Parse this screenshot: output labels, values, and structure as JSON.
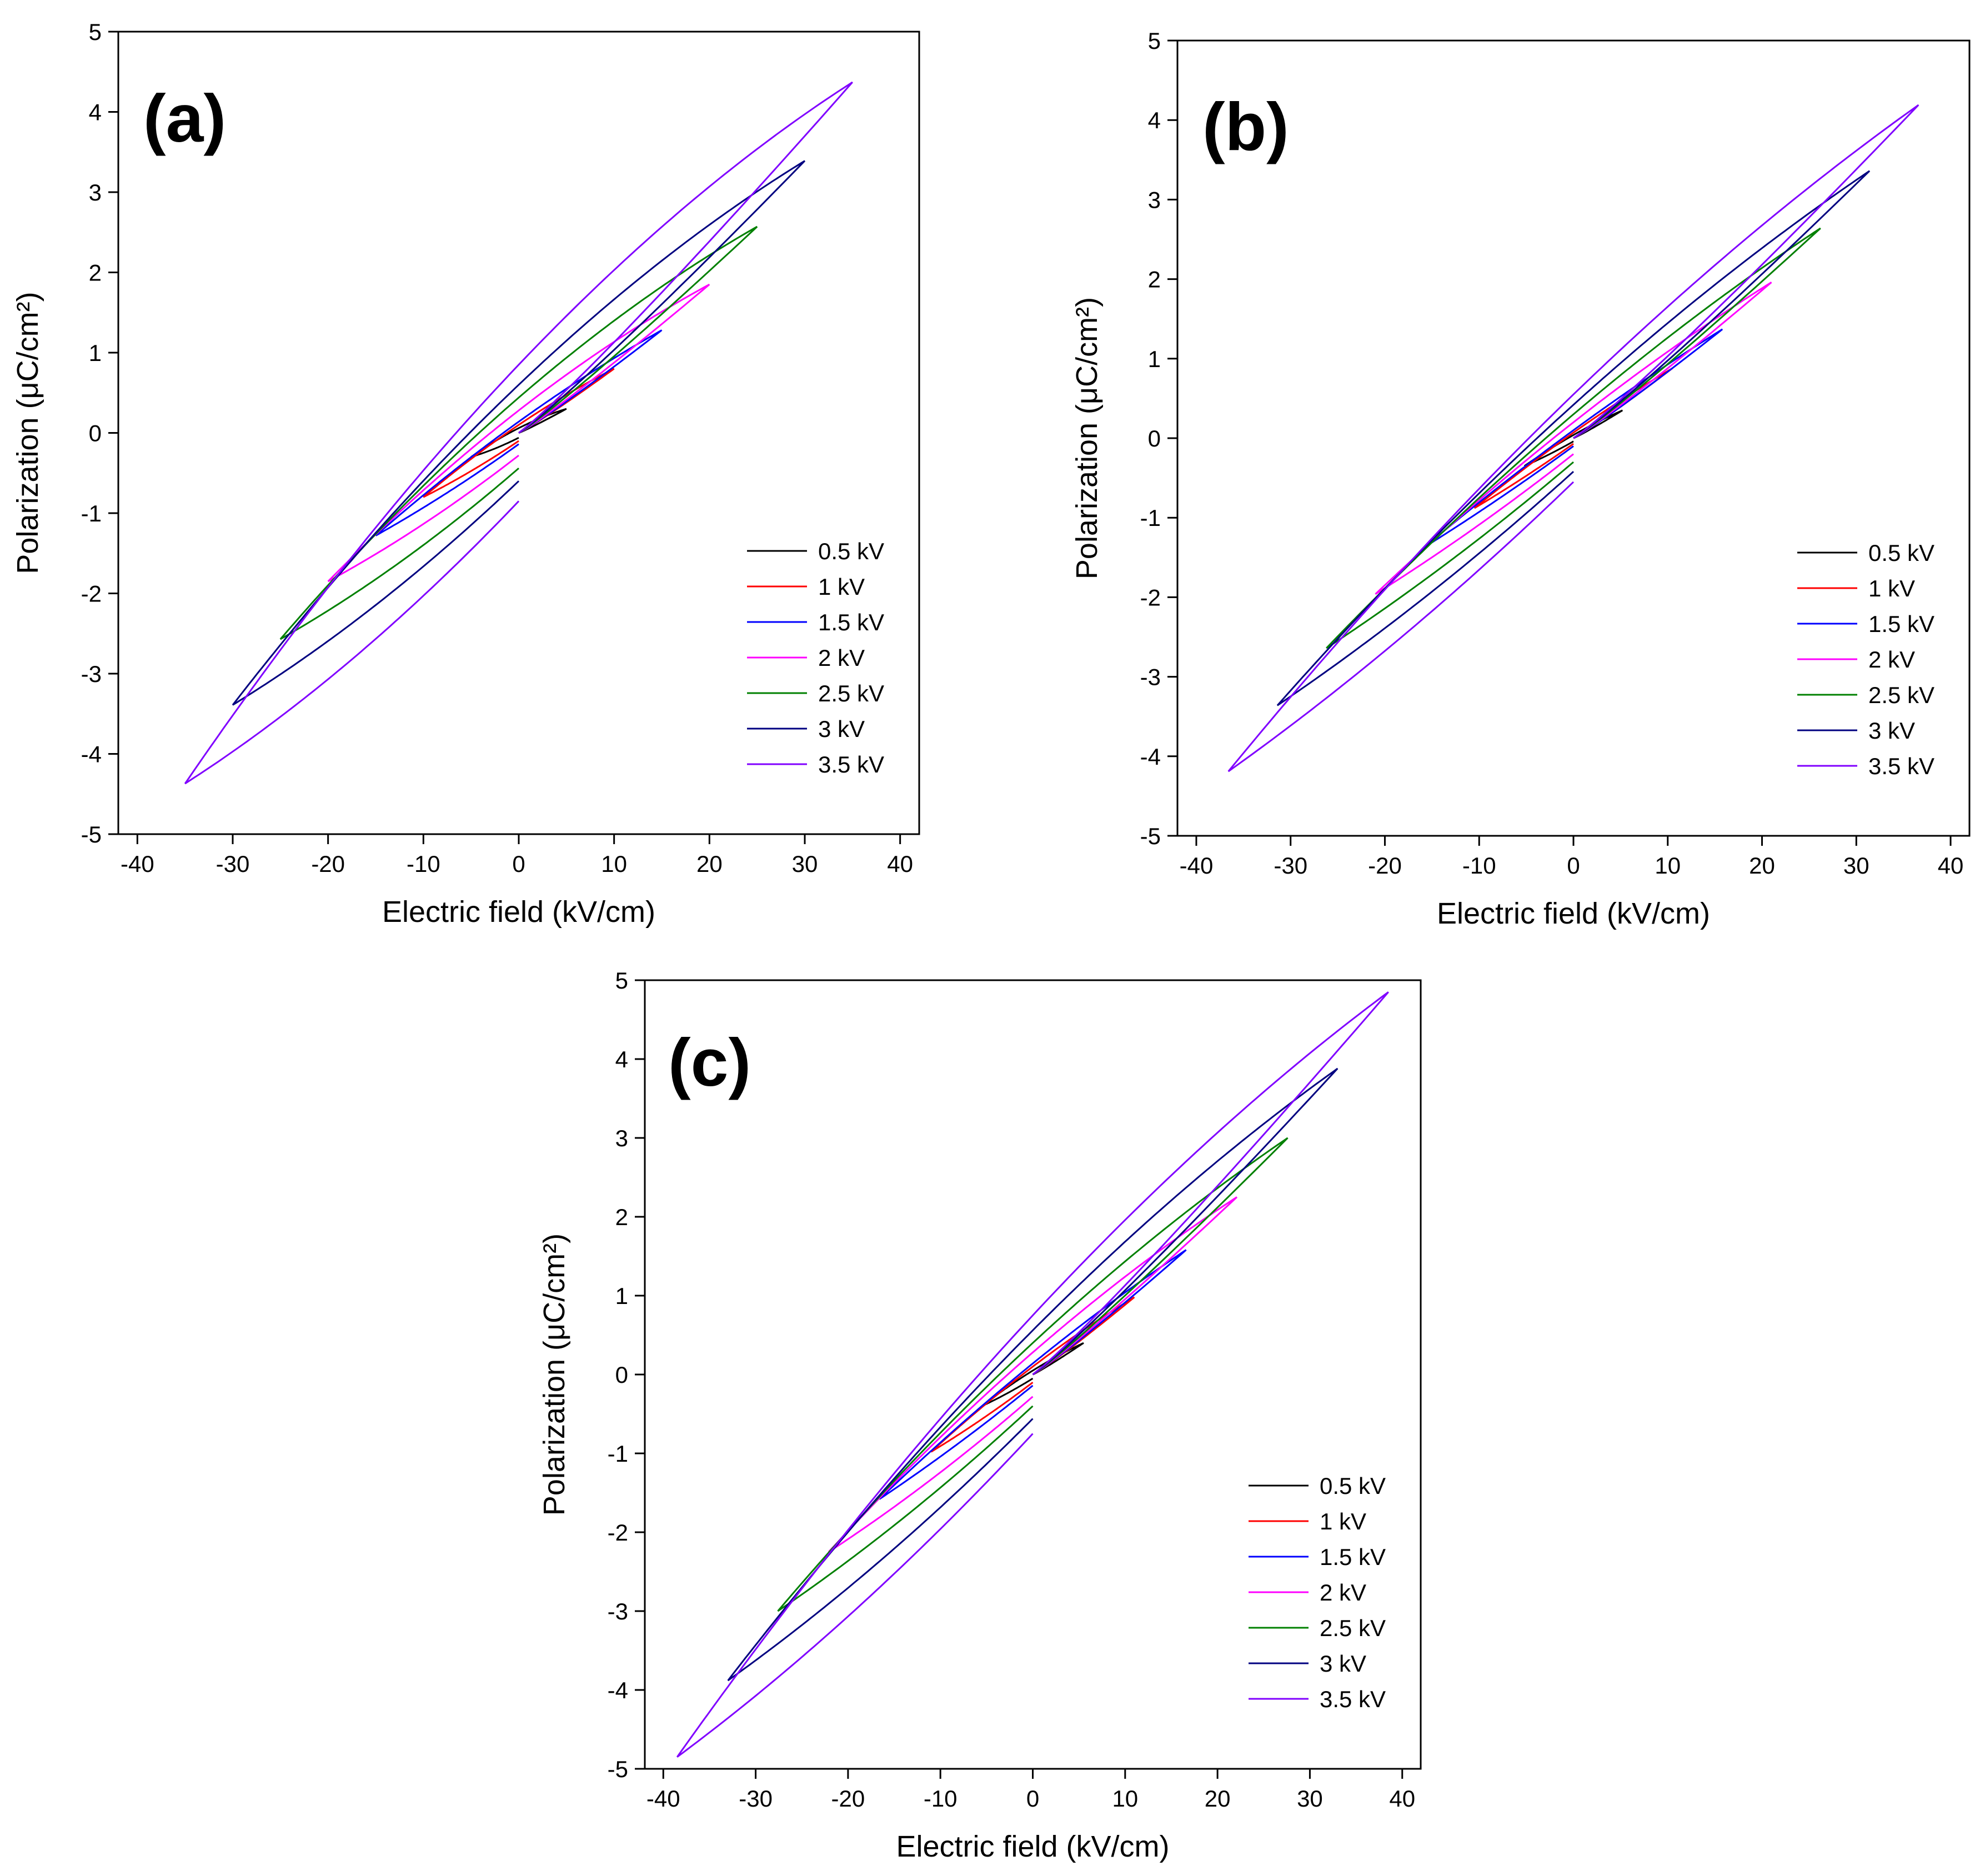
{
  "chart_data": [
    {
      "type": "line",
      "panel_label": "(a)",
      "xlabel": "Electric field (kV/cm)",
      "ylabel": "Polarization (μC/cm²)",
      "xlim": [
        -42,
        42
      ],
      "ylim": [
        -5,
        5
      ],
      "xticks": [
        "-40",
        "-30",
        "-20",
        "-10",
        "0",
        "10",
        "20",
        "30",
        "40"
      ],
      "yticks": [
        "-5",
        "-4",
        "-3",
        "-2",
        "-1",
        "0",
        "1",
        "2",
        "3",
        "4",
        "5"
      ],
      "grid": false,
      "legend_position": "bottom-right",
      "series": [
        {
          "name": "0.5 kV",
          "color": "#000000",
          "Emax": 5,
          "Pmax": 0.3,
          "Pr": 0.06
        },
        {
          "name": "1 kV",
          "color": "#ff0000",
          "Emax": 10,
          "Pmax": 0.8,
          "Pr": 0.1
        },
        {
          "name": "1.5 kV",
          "color": "#0000ff",
          "Emax": 15,
          "Pmax": 1.28,
          "Pr": 0.14
        },
        {
          "name": "2 kV",
          "color": "#ff00ff",
          "Emax": 20,
          "Pmax": 1.85,
          "Pr": 0.28
        },
        {
          "name": "2.5 kV",
          "color": "#008000",
          "Emax": 25,
          "Pmax": 2.57,
          "Pr": 0.44
        },
        {
          "name": "3 kV",
          "color": "#000080",
          "Emax": 30,
          "Pmax": 3.39,
          "Pr": 0.6
        },
        {
          "name": "3.5 kV",
          "color": "#8000ff",
          "Emax": 35,
          "Pmax": 4.37,
          "Pr": 0.85
        }
      ]
    },
    {
      "type": "line",
      "panel_label": "(b)",
      "xlabel": "Electric field (kV/cm)",
      "ylabel": "Polarization (μC/cm²)",
      "xlim": [
        -42,
        42
      ],
      "ylim": [
        -5,
        5
      ],
      "xticks": [
        "-40",
        "-30",
        "-20",
        "-10",
        "0",
        "10",
        "20",
        "30",
        "40"
      ],
      "yticks": [
        "-5",
        "-4",
        "-3",
        "-2",
        "-1",
        "0",
        "1",
        "2",
        "3",
        "4",
        "5"
      ],
      "grid": false,
      "legend_position": "bottom-right",
      "series": [
        {
          "name": "0.5 kV",
          "color": "#000000",
          "Emax": 5.2,
          "Pmax": 0.35,
          "Pr": 0.04
        },
        {
          "name": "1 kV",
          "color": "#ff0000",
          "Emax": 10.5,
          "Pmax": 0.88,
          "Pr": 0.07
        },
        {
          "name": "1.5 kV",
          "color": "#0000ff",
          "Emax": 15.8,
          "Pmax": 1.37,
          "Pr": 0.1
        },
        {
          "name": "2 kV",
          "color": "#ff00ff",
          "Emax": 21,
          "Pmax": 1.96,
          "Pr": 0.2
        },
        {
          "name": "2.5 kV",
          "color": "#008000",
          "Emax": 26.2,
          "Pmax": 2.64,
          "Pr": 0.3
        },
        {
          "name": "3 kV",
          "color": "#000080",
          "Emax": 31.4,
          "Pmax": 3.36,
          "Pr": 0.42
        },
        {
          "name": "3.5 kV",
          "color": "#8000ff",
          "Emax": 36.6,
          "Pmax": 4.19,
          "Pr": 0.55
        }
      ]
    },
    {
      "type": "line",
      "panel_label": "(c)",
      "xlabel": "Electric field (kV/cm)",
      "ylabel": "Polarization (μC/cm²)",
      "xlim": [
        -42,
        42
      ],
      "ylim": [
        -5,
        5
      ],
      "xticks": [
        "-40",
        "-30",
        "-20",
        "-10",
        "0",
        "10",
        "20",
        "30",
        "40"
      ],
      "yticks": [
        "-5",
        "-4",
        "-3",
        "-2",
        "-1",
        "0",
        "1",
        "2",
        "3",
        "4",
        "5"
      ],
      "grid": false,
      "legend_position": "bottom-right",
      "series": [
        {
          "name": "0.5 kV",
          "color": "#000000",
          "Emax": 5.5,
          "Pmax": 0.4,
          "Pr": 0.05
        },
        {
          "name": "1 kV",
          "color": "#ff0000",
          "Emax": 11,
          "Pmax": 0.98,
          "Pr": 0.1
        },
        {
          "name": "1.5 kV",
          "color": "#0000ff",
          "Emax": 16.6,
          "Pmax": 1.58,
          "Pr": 0.14
        },
        {
          "name": "2 kV",
          "color": "#ff00ff",
          "Emax": 22.1,
          "Pmax": 2.25,
          "Pr": 0.28
        },
        {
          "name": "2.5 kV",
          "color": "#008000",
          "Emax": 27.6,
          "Pmax": 3.0,
          "Pr": 0.4
        },
        {
          "name": "3 kV",
          "color": "#000080",
          "Emax": 33,
          "Pmax": 3.88,
          "Pr": 0.56
        },
        {
          "name": "3.5 kV",
          "color": "#8000ff",
          "Emax": 38.5,
          "Pmax": 4.85,
          "Pr": 0.75
        }
      ]
    }
  ]
}
